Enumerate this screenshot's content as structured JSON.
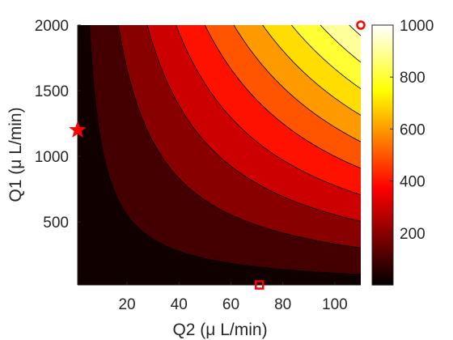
{
  "chart_data": {
    "type": "contour",
    "xlabel": "Q2 (μ L/min)",
    "ylabel": "Q1 (μ L/min)",
    "xlim": [
      1,
      110
    ],
    "ylim": [
      20,
      2000
    ],
    "x_ticks": [
      20,
      40,
      60,
      80,
      100
    ],
    "y_ticks": [
      500,
      1000,
      1500,
      2000
    ],
    "colorbar": {
      "colormap": "hot",
      "range": [
        0,
        1000
      ],
      "ticks": [
        200,
        400,
        600,
        800,
        1000
      ]
    },
    "contour_levels": [
      50,
      150,
      250,
      350,
      450,
      550,
      650,
      750,
      850,
      950
    ],
    "field": "z = 0.0045 * Q1 * Q2",
    "markers": [
      {
        "shape": "pentagram",
        "x": 1,
        "y": 1200,
        "color": "#ff0000"
      },
      {
        "shape": "circle",
        "x": 110,
        "y": 2000,
        "color": "#ff0000"
      },
      {
        "shape": "square",
        "x": 71,
        "y": 20,
        "color": "#ff0000"
      }
    ]
  }
}
